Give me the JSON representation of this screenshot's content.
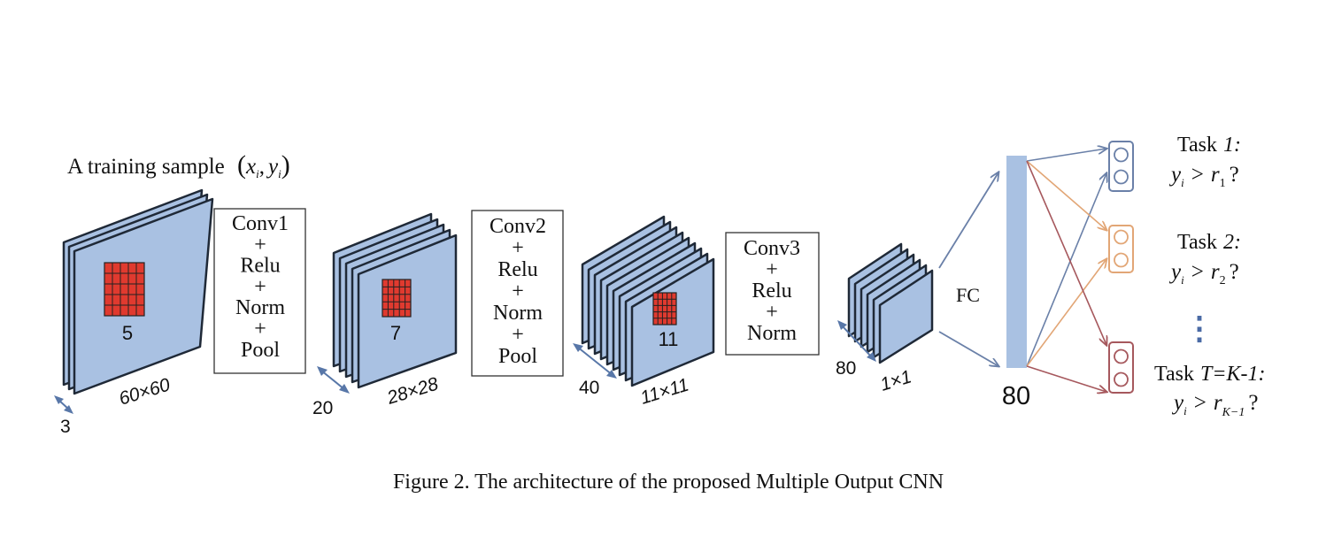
{
  "sample_label": "A training sample",
  "sample_math": {
    "x": "x",
    "i1": "i",
    "y": "y",
    "i2": "i"
  },
  "stages": [
    {
      "kernel": "5",
      "size": "60×60",
      "depth": "3"
    },
    {
      "kernel": "7",
      "size": "28×28",
      "depth": "20"
    },
    {
      "kernel": "11",
      "size": "11×11",
      "depth": "40"
    },
    {
      "size": "1×1",
      "depth": "80"
    }
  ],
  "ops": [
    [
      "Conv1",
      "+",
      "Relu",
      "+",
      "Norm",
      "+",
      "Pool"
    ],
    [
      "Conv2",
      "+",
      "Relu",
      "+",
      "Norm",
      "+",
      "Pool"
    ],
    [
      "Conv3",
      "+",
      "Relu",
      "+",
      "Norm"
    ]
  ],
  "fc_label": "FC",
  "fc_size": "80",
  "tasks": [
    {
      "title": "Task",
      "index": "1:",
      "cond": {
        "y": "y",
        "sub_y": "i",
        "op": ">",
        "r": "r",
        "sub_r": "1",
        "q": "?"
      }
    },
    {
      "title": "Task",
      "index": "2:",
      "cond": {
        "y": "y",
        "sub_y": "i",
        "op": ">",
        "r": "r",
        "sub_r": "2",
        "q": "?"
      }
    },
    {
      "title": "Task",
      "index": "T=K-1:",
      "cond": {
        "y": "y",
        "sub_y": "i",
        "op": ">",
        "r": "r",
        "sub_r": "K−1",
        "q": "?"
      }
    }
  ],
  "ellipsis": "⋮",
  "caption": "Figure 2. The architecture of the proposed Multiple Output CNN",
  "colors": {
    "feature_map": "#a9c1e2",
    "kernel": "#e03a2f",
    "fc_bar": "#a9c1e2",
    "task1": "#6a80a8",
    "task2": "#e2a676",
    "task3": "#a6585d"
  }
}
